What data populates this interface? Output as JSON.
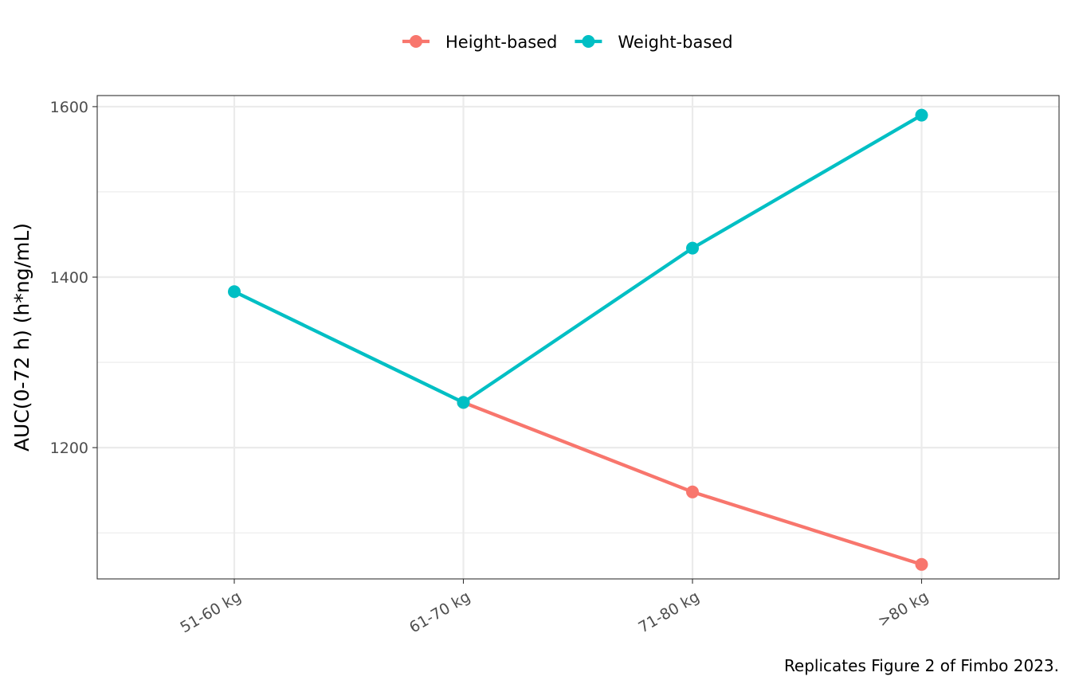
{
  "chart_data": {
    "type": "line",
    "categories": [
      "51-60 kg",
      "61-70 kg",
      "71-80 kg",
      ">80 kg"
    ],
    "series": [
      {
        "name": "Height-based",
        "color": "#F8766D",
        "values": [
          null,
          1253,
          1148,
          1063
        ]
      },
      {
        "name": "Weight-based",
        "color": "#00BFC4",
        "values": [
          1383,
          1253,
          1434,
          1590
        ]
      }
    ],
    "xlabel": "",
    "ylabel": "AUC(0-72 h) (h*ng/mL)",
    "ylim": [
      1046,
      1613
    ],
    "yticks": [
      1200,
      1400,
      1600
    ],
    "yminor": [
      1100,
      1300,
      1500
    ],
    "grid": true,
    "legend_position": "top",
    "caption": "Replicates Figure 2 of Fimbo 2023."
  }
}
